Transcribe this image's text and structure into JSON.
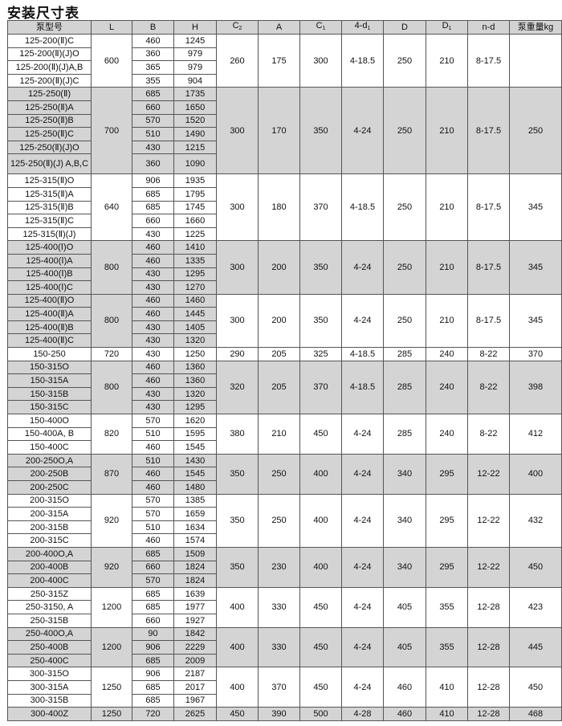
{
  "title": "安装尺寸表",
  "headers": [
    {
      "base": "泵型号",
      "sub": ""
    },
    {
      "base": "L",
      "sub": ""
    },
    {
      "base": "B",
      "sub": ""
    },
    {
      "base": "H",
      "sub": ""
    },
    {
      "base": "C",
      "sub": "2"
    },
    {
      "base": "A",
      "sub": ""
    },
    {
      "base": "C",
      "sub": "1"
    },
    {
      "base": "4-d",
      "sub": "1"
    },
    {
      "base": "D",
      "sub": ""
    },
    {
      "base": "D",
      "sub": "1"
    },
    {
      "base": "n-d",
      "sub": ""
    },
    {
      "base": "泵重量kg",
      "sub": ""
    }
  ],
  "shade_color": "#d4d4d4",
  "groups": [
    {
      "L": "600",
      "shade_left": false,
      "shade_right": false,
      "specs": [
        "260",
        "175",
        "300",
        "4-18.5",
        "250",
        "210",
        "8-17.5",
        ""
      ],
      "rows": [
        [
          "125-200(Ⅱ)C",
          "460",
          "1245"
        ],
        [
          "125-200(Ⅱ)(J)O",
          "360",
          "979"
        ],
        [
          "125-200(Ⅱ)(J)A,B",
          "365",
          "979"
        ],
        [
          "125-200(Ⅱ)(J)C",
          "355",
          "904"
        ]
      ]
    },
    {
      "L": "700",
      "shade_left": true,
      "shade_right": true,
      "specs": [
        "300",
        "170",
        "350",
        "4-24",
        "250",
        "210",
        "8-17.5",
        "250"
      ],
      "rows": [
        [
          "125-250(Ⅱ)",
          "685",
          "1735"
        ],
        [
          "125-250(Ⅱ)A",
          "660",
          "1650"
        ],
        [
          "125-250(Ⅱ)B",
          "570",
          "1520"
        ],
        [
          "125-250(Ⅱ)C",
          "510",
          "1490"
        ],
        [
          "125-250(Ⅱ)(J)O",
          "430",
          "1215"
        ],
        [
          "125-250(Ⅱ)(J) A,B,C",
          "360",
          "1090"
        ]
      ]
    },
    {
      "L": "640",
      "shade_left": false,
      "shade_right": false,
      "specs": [
        "300",
        "180",
        "370",
        "4-18.5",
        "250",
        "210",
        "8-17.5",
        "345"
      ],
      "rows": [
        [
          "125-315(Ⅱ)O",
          "906",
          "1935"
        ],
        [
          "125-315(Ⅱ)A",
          "685",
          "1795"
        ],
        [
          "125-315(Ⅱ)B",
          "685",
          "1745"
        ],
        [
          "125-315(Ⅱ)C",
          "660",
          "1660"
        ],
        [
          "125-315(Ⅱ)(J)",
          "430",
          "1225"
        ]
      ]
    },
    {
      "L": "800",
      "shade_left": true,
      "shade_right": true,
      "specs": [
        "300",
        "200",
        "350",
        "4-24",
        "250",
        "210",
        "8-17.5",
        "345"
      ],
      "rows": [
        [
          "125-400(Ⅰ)O",
          "460",
          "1410"
        ],
        [
          "125-400(Ⅰ)A",
          "460",
          "1335"
        ],
        [
          "125-400(Ⅰ)B",
          "430",
          "1295"
        ],
        [
          "125-400(Ⅰ)C",
          "430",
          "1270"
        ]
      ]
    },
    {
      "L": "800",
      "shade_left": true,
      "shade_right": false,
      "specs": [
        "300",
        "200",
        "350",
        "4-24",
        "250",
        "210",
        "8-17.5",
        "345"
      ],
      "rows": [
        [
          "125-400(Ⅱ)O",
          "460",
          "1460"
        ],
        [
          "125-400(Ⅱ)A",
          "460",
          "1445"
        ],
        [
          "125-400(Ⅱ)B",
          "430",
          "1405"
        ],
        [
          "125-400(Ⅱ)C",
          "430",
          "1320"
        ]
      ]
    },
    {
      "L": "720",
      "shade_left": false,
      "shade_right": false,
      "specs": [
        "290",
        "205",
        "325",
        "4-18.5",
        "285",
        "240",
        "8-22",
        "370"
      ],
      "rows": [
        [
          "150-250",
          "430",
          "1250"
        ]
      ]
    },
    {
      "L": "800",
      "shade_left": true,
      "shade_right": true,
      "specs": [
        "320",
        "205",
        "370",
        "4-18.5",
        "285",
        "240",
        "8-22",
        "398"
      ],
      "rows": [
        [
          "150-315O",
          "460",
          "1360"
        ],
        [
          "150-315A",
          "460",
          "1360"
        ],
        [
          "150-315B",
          "430",
          "1320"
        ],
        [
          "150-315C",
          "430",
          "1295"
        ]
      ]
    },
    {
      "L": "820",
      "shade_left": false,
      "shade_right": false,
      "specs": [
        "380",
        "210",
        "450",
        "4-24",
        "285",
        "240",
        "8-22",
        "412"
      ],
      "rows": [
        [
          "150-400O",
          "570",
          "1620"
        ],
        [
          "150-400A, B",
          "510",
          "1595"
        ],
        [
          "150-400C",
          "460",
          "1545"
        ]
      ]
    },
    {
      "L": "870",
      "shade_left": true,
      "shade_right": true,
      "specs": [
        "350",
        "250",
        "400",
        "4-24",
        "340",
        "295",
        "12-22",
        "400"
      ],
      "rows": [
        [
          "200-250O,A",
          "510",
          "1430"
        ],
        [
          "200-250B",
          "460",
          "1545"
        ],
        [
          "200-250C",
          "460",
          "1480"
        ]
      ]
    },
    {
      "L": "920",
      "shade_left": false,
      "shade_right": false,
      "specs": [
        "350",
        "250",
        "400",
        "4-24",
        "340",
        "295",
        "12-22",
        "432"
      ],
      "rows": [
        [
          "200-315O",
          "570",
          "1385"
        ],
        [
          "200-315A",
          "570",
          "1659"
        ],
        [
          "200-315B",
          "510",
          "1634"
        ],
        [
          "200-315C",
          "460",
          "1574"
        ]
      ]
    },
    {
      "L": "920",
      "shade_left": true,
      "shade_right": true,
      "specs": [
        "350",
        "230",
        "400",
        "4-24",
        "340",
        "295",
        "12-22",
        "450"
      ],
      "rows": [
        [
          "200-400O,A",
          "685",
          "1509"
        ],
        [
          "200-400B",
          "660",
          "1824"
        ],
        [
          "200-400C",
          "570",
          "1824"
        ]
      ]
    },
    {
      "L": "1200",
      "shade_left": false,
      "shade_right": false,
      "specs": [
        "400",
        "330",
        "450",
        "4-24",
        "405",
        "355",
        "12-28",
        "423"
      ],
      "rows": [
        [
          "250-315Z",
          "685",
          "1639"
        ],
        [
          "250-3150, A",
          "685",
          "1977"
        ],
        [
          "250-315B",
          "660",
          "1927"
        ]
      ]
    },
    {
      "L": "1200",
      "shade_left": true,
      "shade_right": true,
      "specs": [
        "400",
        "330",
        "450",
        "4-24",
        "405",
        "355",
        "12-28",
        "445"
      ],
      "rows": [
        [
          "250-400O,A",
          "90",
          "1842"
        ],
        [
          "250-400B",
          "906",
          "2229"
        ],
        [
          "250-400C",
          "685",
          "2009"
        ]
      ]
    },
    {
      "L": "1250",
      "shade_left": false,
      "shade_right": false,
      "specs": [
        "400",
        "370",
        "450",
        "4-24",
        "460",
        "410",
        "12-28",
        "450"
      ],
      "rows": [
        [
          "300-315O",
          "906",
          "2187"
        ],
        [
          "300-315A",
          "685",
          "2017"
        ],
        [
          "300-315B",
          "685",
          "1967"
        ]
      ]
    },
    {
      "L": "1250",
      "shade_left": true,
      "shade_right": true,
      "specs": [
        "450",
        "390",
        "500",
        "4-28",
        "460",
        "410",
        "12-28",
        "468"
      ],
      "rows": [
        [
          "300-400Z",
          "720",
          "2625"
        ]
      ]
    }
  ]
}
